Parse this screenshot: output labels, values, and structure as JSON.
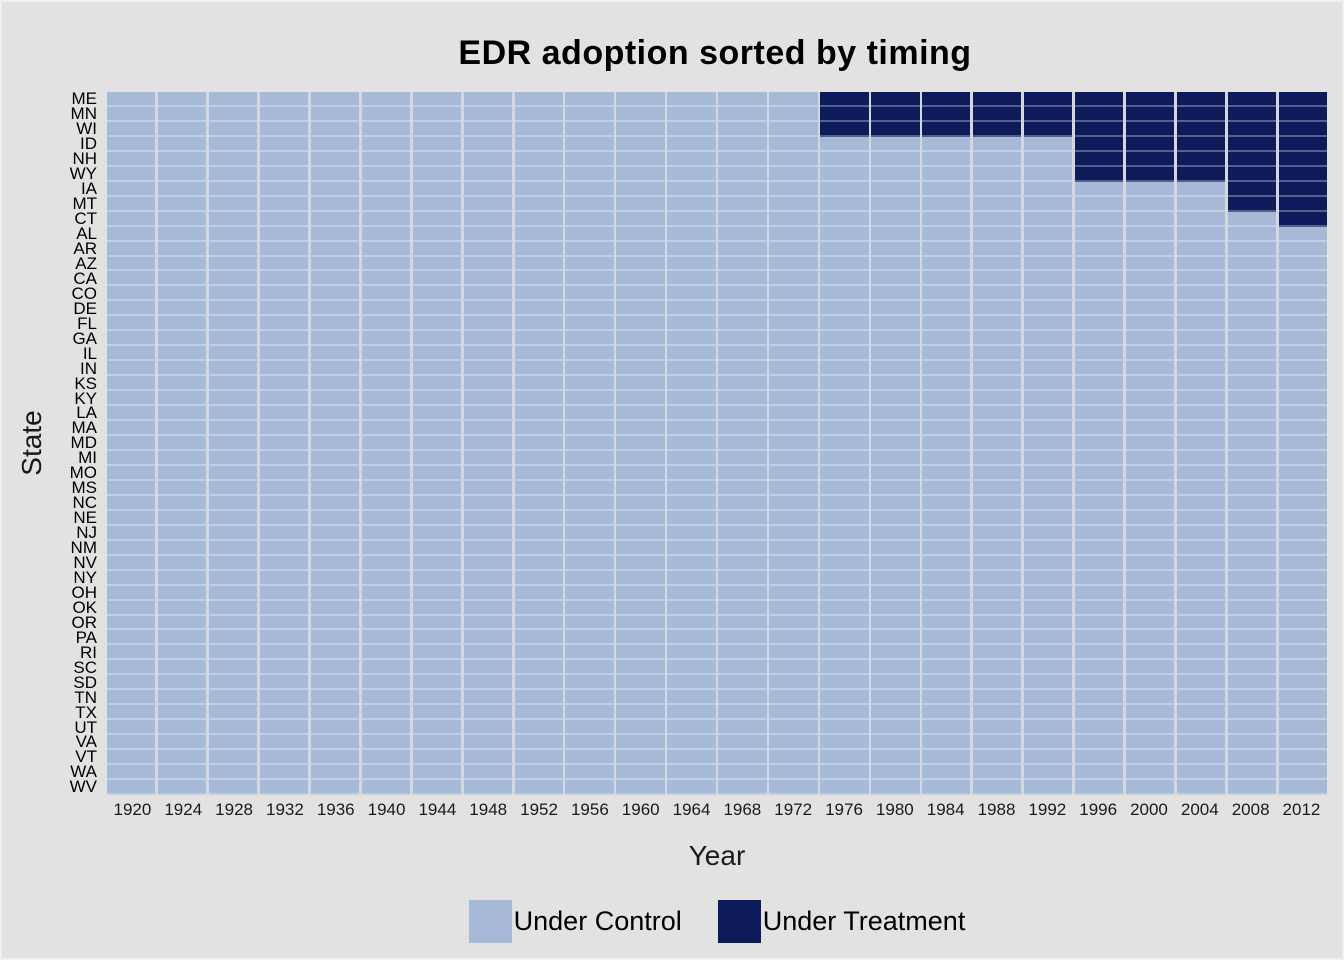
{
  "chart_data": {
    "type": "heatmap",
    "title": "EDR adoption sorted by timing",
    "xlabel": "Year",
    "ylabel": "State",
    "x": [
      1920,
      1924,
      1928,
      1932,
      1936,
      1940,
      1944,
      1948,
      1952,
      1956,
      1960,
      1964,
      1968,
      1972,
      1976,
      1980,
      1984,
      1988,
      1992,
      1996,
      2000,
      2004,
      2008,
      2012
    ],
    "x_tick_step_years": 4,
    "grid": "white gaps between tiles",
    "legend_position": "bottom",
    "colors": {
      "control": "#a6bad8",
      "treatment": "#0e1b5b",
      "background": "#e2e2e2"
    },
    "legend": [
      {
        "label": "Under Control",
        "color": "#a6bad8"
      },
      {
        "label": "Under Treatment",
        "color": "#0e1b5b"
      }
    ],
    "states": [
      {
        "name": "ME",
        "treatment_start": 1976
      },
      {
        "name": "MN",
        "treatment_start": 1976
      },
      {
        "name": "WI",
        "treatment_start": 1976
      },
      {
        "name": "ID",
        "treatment_start": 1996
      },
      {
        "name": "NH",
        "treatment_start": 1996
      },
      {
        "name": "WY",
        "treatment_start": 1996
      },
      {
        "name": "IA",
        "treatment_start": 2008
      },
      {
        "name": "MT",
        "treatment_start": 2008
      },
      {
        "name": "CT",
        "treatment_start": 2012
      },
      {
        "name": "AL",
        "treatment_start": null
      },
      {
        "name": "AR",
        "treatment_start": null
      },
      {
        "name": "AZ",
        "treatment_start": null
      },
      {
        "name": "CA",
        "treatment_start": null
      },
      {
        "name": "CO",
        "treatment_start": null
      },
      {
        "name": "DE",
        "treatment_start": null
      },
      {
        "name": "FL",
        "treatment_start": null
      },
      {
        "name": "GA",
        "treatment_start": null
      },
      {
        "name": "IL",
        "treatment_start": null
      },
      {
        "name": "IN",
        "treatment_start": null
      },
      {
        "name": "KS",
        "treatment_start": null
      },
      {
        "name": "KY",
        "treatment_start": null
      },
      {
        "name": "LA",
        "treatment_start": null
      },
      {
        "name": "MA",
        "treatment_start": null
      },
      {
        "name": "MD",
        "treatment_start": null
      },
      {
        "name": "MI",
        "treatment_start": null
      },
      {
        "name": "MO",
        "treatment_start": null
      },
      {
        "name": "MS",
        "treatment_start": null
      },
      {
        "name": "NC",
        "treatment_start": null
      },
      {
        "name": "NE",
        "treatment_start": null
      },
      {
        "name": "NJ",
        "treatment_start": null
      },
      {
        "name": "NM",
        "treatment_start": null
      },
      {
        "name": "NV",
        "treatment_start": null
      },
      {
        "name": "NY",
        "treatment_start": null
      },
      {
        "name": "OH",
        "treatment_start": null
      },
      {
        "name": "OK",
        "treatment_start": null
      },
      {
        "name": "OR",
        "treatment_start": null
      },
      {
        "name": "PA",
        "treatment_start": null
      },
      {
        "name": "RI",
        "treatment_start": null
      },
      {
        "name": "SC",
        "treatment_start": null
      },
      {
        "name": "SD",
        "treatment_start": null
      },
      {
        "name": "TN",
        "treatment_start": null
      },
      {
        "name": "TX",
        "treatment_start": null
      },
      {
        "name": "UT",
        "treatment_start": null
      },
      {
        "name": "VA",
        "treatment_start": null
      },
      {
        "name": "VT",
        "treatment_start": null
      },
      {
        "name": "WA",
        "treatment_start": null
      },
      {
        "name": "WV",
        "treatment_start": null
      }
    ]
  }
}
